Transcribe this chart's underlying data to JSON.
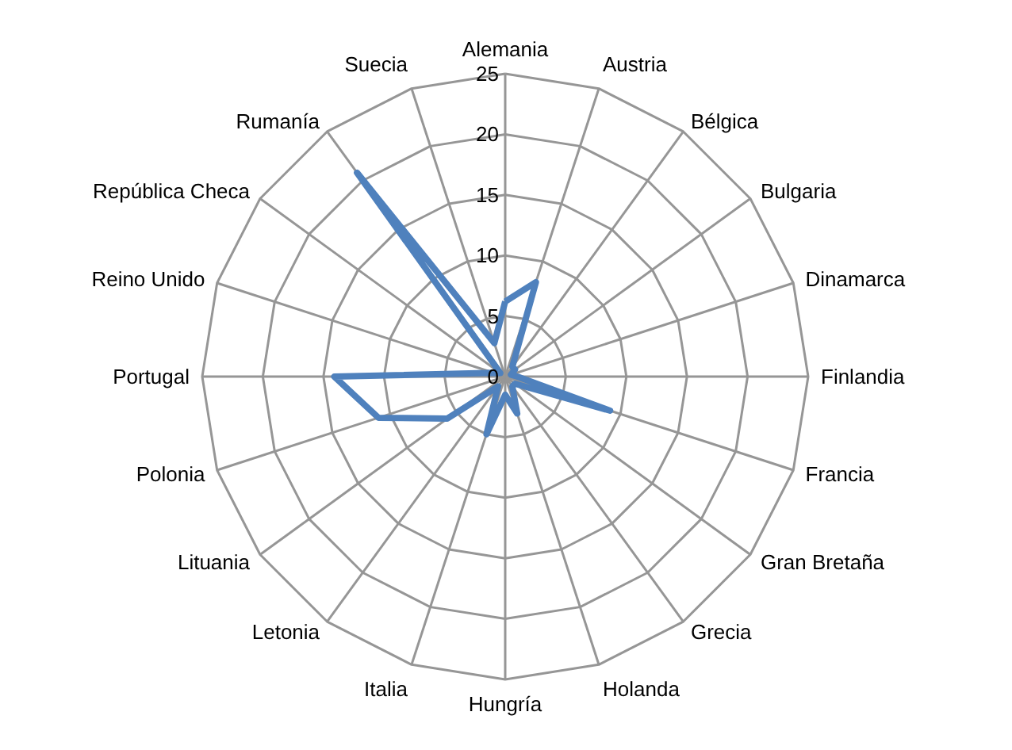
{
  "chart_data": {
    "type": "radar",
    "categories": [
      "Alemania",
      "Austria",
      "Bélgica",
      "Bulgaria",
      "Dinamarca",
      "Finlandia",
      "Francia",
      "Gran Bretaña",
      "Grecia",
      "Holanda",
      "Hungría",
      "Italia",
      "Letonia",
      "Lituania",
      "Polonia",
      "Portugal",
      "Reino Unido",
      "República Checa",
      "Rumanía",
      "Suecia"
    ],
    "series": [
      {
        "color": "#4f81bd",
        "values": [
          6.2,
          8.2,
          1,
          1,
          0.5,
          1,
          9.1,
          1,
          1,
          3.2,
          1.5,
          5,
          1,
          5.9,
          11,
          14.1,
          1,
          0.5,
          20.8,
          2.9
        ]
      }
    ],
    "ylim": [
      0,
      25
    ],
    "yticks": [
      0,
      5,
      10,
      15,
      20,
      25
    ],
    "grid": true
  }
}
